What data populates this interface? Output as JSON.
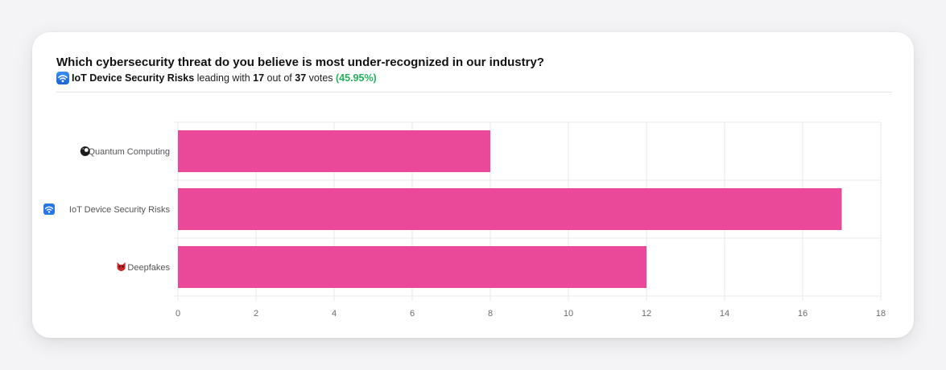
{
  "poll": {
    "question": "Which cybersecurity threat do you believe is most under-recognized in our industry?",
    "leader_name": "IoT Device Security Risks",
    "leader_icon": "wifi-icon",
    "text_leading_with": " leading with ",
    "leader_votes": "17",
    "text_out_of": " out of ",
    "total_votes": "37",
    "text_votes": " votes ",
    "leader_percent": "(45.95%)"
  },
  "colors": {
    "bar": "#ea4999",
    "grid": "#e8e8ec",
    "tick_text": "#6b6b70",
    "percent": "#22b45a"
  },
  "chart_data": {
    "type": "bar",
    "orientation": "horizontal",
    "categories": [
      "Quantum Computing",
      "IoT Device Security Risks",
      "Deepfakes"
    ],
    "category_icons": [
      "8-ball-icon",
      "wifi-icon",
      "devil-mask-icon"
    ],
    "values": [
      8,
      17,
      12
    ],
    "xlim": [
      0,
      18
    ],
    "xticks": [
      0,
      2,
      4,
      6,
      8,
      10,
      12,
      14,
      16,
      18
    ],
    "grid": true,
    "legend": "none"
  }
}
